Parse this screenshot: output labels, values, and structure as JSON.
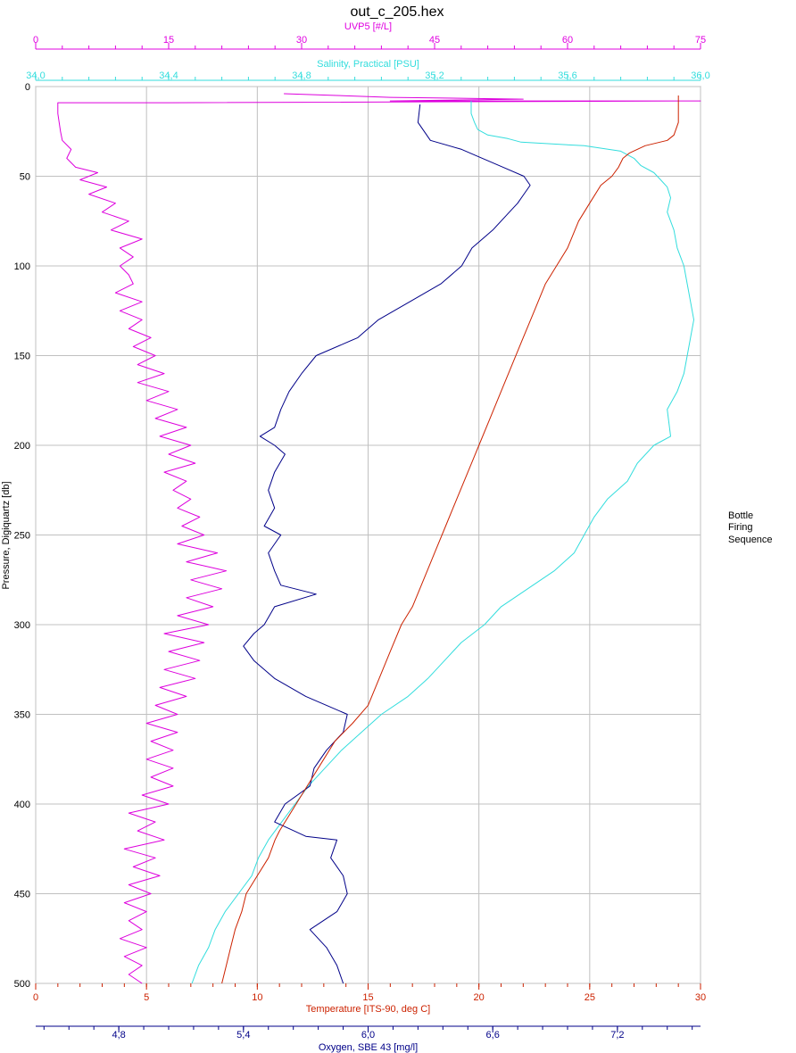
{
  "chart_data": {
    "type": "line",
    "title": "out_c_205.hex",
    "legend": {
      "lines": [
        "Bottle",
        "Firing",
        "Sequence"
      ],
      "placement": "right"
    },
    "grid": true,
    "y_axis": {
      "label": "Pressure, Digiquartz [db]",
      "range": [
        0,
        500
      ],
      "inverted": true,
      "ticks": [
        0,
        50,
        100,
        150,
        200,
        250,
        300,
        350,
        400,
        450,
        500
      ],
      "tick_labels": [
        "0",
        "50",
        "100",
        "150",
        "200",
        "250",
        "300",
        "350",
        "400",
        "450",
        "500"
      ],
      "color": "#000000"
    },
    "x_axes": [
      {
        "key": "uvp5",
        "label": "UVP5 [#/L]",
        "position": "top-outer",
        "range": [
          0,
          75
        ],
        "ticks": [
          0,
          15,
          30,
          45,
          60,
          75
        ],
        "tick_labels": [
          "0",
          "15",
          "30",
          "45",
          "60",
          "75"
        ],
        "color": "#e000e0"
      },
      {
        "key": "salinity",
        "label": "Salinity, Practical [PSU]",
        "position": "top-inner",
        "range": [
          34.0,
          36.0
        ],
        "ticks": [
          34.0,
          34.4,
          34.8,
          35.2,
          35.6,
          36.0
        ],
        "tick_labels": [
          "34,0",
          "34,4",
          "34,8",
          "35,2",
          "35,6",
          "36,0"
        ],
        "color": "#33dddd"
      },
      {
        "key": "temperature",
        "label": "Temperature [ITS-90, deg C]",
        "position": "bottom-inner",
        "range": [
          0,
          30
        ],
        "ticks": [
          0,
          5,
          10,
          15,
          20,
          25,
          30
        ],
        "tick_labels": [
          "0",
          "5",
          "10",
          "15",
          "20",
          "25",
          "30"
        ],
        "color": "#cc2200"
      },
      {
        "key": "oxygen",
        "label": "Oxygen, SBE 43 [mg/l]",
        "position": "bottom-outer",
        "range": [
          4.4,
          7.6
        ],
        "ticks": [
          4.8,
          5.4,
          6.0,
          6.6,
          7.2
        ],
        "tick_labels": [
          "4,8",
          "5,4",
          "6,0",
          "6,6",
          "7,2"
        ],
        "color": "#000088"
      }
    ],
    "series": [
      {
        "name": "UVP5 [#/L]",
        "axis": "uvp5",
        "color": "#dd00dd",
        "points": [
          [
            28,
            4
          ],
          [
            34,
            5
          ],
          [
            40,
            6
          ],
          [
            55,
            7
          ],
          [
            40,
            8
          ],
          [
            75,
            8
          ],
          [
            15,
            9
          ],
          [
            2.5,
            9
          ],
          [
            2.5,
            15
          ],
          [
            2.8,
            25
          ],
          [
            3,
            30
          ],
          [
            4,
            35
          ],
          [
            3.5,
            40
          ],
          [
            4.5,
            45
          ],
          [
            7,
            48
          ],
          [
            5,
            52
          ],
          [
            8,
            56
          ],
          [
            6,
            60
          ],
          [
            9,
            65
          ],
          [
            7.5,
            70
          ],
          [
            10.5,
            75
          ],
          [
            8.5,
            80
          ],
          [
            12,
            85
          ],
          [
            9.5,
            90
          ],
          [
            11,
            95
          ],
          [
            9.5,
            100
          ],
          [
            10.5,
            105
          ],
          [
            11,
            110
          ],
          [
            9,
            115
          ],
          [
            12,
            120
          ],
          [
            9.5,
            125
          ],
          [
            12,
            130
          ],
          [
            10.5,
            135
          ],
          [
            13,
            140
          ],
          [
            11,
            145
          ],
          [
            13.5,
            150
          ],
          [
            11.5,
            155
          ],
          [
            14.5,
            160
          ],
          [
            11.5,
            165
          ],
          [
            15,
            170
          ],
          [
            12.5,
            175
          ],
          [
            16,
            180
          ],
          [
            13.5,
            185
          ],
          [
            17,
            190
          ],
          [
            14,
            195
          ],
          [
            17.5,
            200
          ],
          [
            15,
            205
          ],
          [
            18,
            210
          ],
          [
            14.5,
            215
          ],
          [
            17,
            220
          ],
          [
            15.5,
            225
          ],
          [
            17.5,
            230
          ],
          [
            16,
            235
          ],
          [
            18.5,
            240
          ],
          [
            16.5,
            245
          ],
          [
            19,
            250
          ],
          [
            16,
            255
          ],
          [
            20.5,
            260
          ],
          [
            17,
            265
          ],
          [
            21.5,
            270
          ],
          [
            17.5,
            275
          ],
          [
            21,
            280
          ],
          [
            17,
            285
          ],
          [
            20,
            290
          ],
          [
            16,
            295
          ],
          [
            19.5,
            300
          ],
          [
            14.5,
            305
          ],
          [
            19,
            310
          ],
          [
            15,
            315
          ],
          [
            18.5,
            320
          ],
          [
            14.5,
            325
          ],
          [
            18,
            330
          ],
          [
            14,
            335
          ],
          [
            17,
            340
          ],
          [
            13.5,
            345
          ],
          [
            16,
            350
          ],
          [
            12.5,
            355
          ],
          [
            16,
            360
          ],
          [
            13,
            365
          ],
          [
            15.5,
            370
          ],
          [
            12.5,
            375
          ],
          [
            15.5,
            380
          ],
          [
            13,
            385
          ],
          [
            15.5,
            390
          ],
          [
            12,
            395
          ],
          [
            15,
            400
          ],
          [
            10.5,
            405
          ],
          [
            13.5,
            410
          ],
          [
            11.5,
            415
          ],
          [
            14.5,
            420
          ],
          [
            10,
            425
          ],
          [
            13.5,
            430
          ],
          [
            11,
            435
          ],
          [
            14,
            440
          ],
          [
            10.5,
            445
          ],
          [
            13,
            450
          ],
          [
            10,
            455
          ],
          [
            12.5,
            460
          ],
          [
            10.5,
            465
          ],
          [
            12,
            470
          ],
          [
            9.5,
            475
          ],
          [
            12.5,
            480
          ],
          [
            10,
            485
          ],
          [
            12,
            490
          ],
          [
            10.5,
            495
          ],
          [
            12,
            500
          ]
        ]
      },
      {
        "name": "Salinity, Practical [PSU]",
        "axis": "salinity",
        "color": "#33dddd",
        "points": [
          [
            35.31,
            8
          ],
          [
            35.31,
            15
          ],
          [
            35.32,
            20
          ],
          [
            35.33,
            24
          ],
          [
            35.36,
            27
          ],
          [
            35.42,
            29
          ],
          [
            35.46,
            31
          ],
          [
            35.65,
            33
          ],
          [
            35.76,
            36
          ],
          [
            35.8,
            40
          ],
          [
            35.82,
            44
          ],
          [
            35.86,
            48
          ],
          [
            35.88,
            52
          ],
          [
            35.9,
            56
          ],
          [
            35.91,
            62
          ],
          [
            35.9,
            70
          ],
          [
            35.92,
            80
          ],
          [
            35.93,
            90
          ],
          [
            35.95,
            100
          ],
          [
            35.96,
            110
          ],
          [
            35.97,
            120
          ],
          [
            35.98,
            130
          ],
          [
            35.97,
            140
          ],
          [
            35.96,
            150
          ],
          [
            35.95,
            160
          ],
          [
            35.93,
            170
          ],
          [
            35.9,
            180
          ],
          [
            35.91,
            195
          ],
          [
            35.86,
            200
          ],
          [
            35.81,
            210
          ],
          [
            35.78,
            220
          ],
          [
            35.72,
            230
          ],
          [
            35.68,
            240
          ],
          [
            35.65,
            250
          ],
          [
            35.62,
            260
          ],
          [
            35.56,
            270
          ],
          [
            35.48,
            280
          ],
          [
            35.4,
            290
          ],
          [
            35.35,
            300
          ],
          [
            35.28,
            310
          ],
          [
            35.23,
            320
          ],
          [
            35.18,
            330
          ],
          [
            35.12,
            340
          ],
          [
            35.04,
            350
          ],
          [
            34.98,
            360
          ],
          [
            34.92,
            370
          ],
          [
            34.87,
            380
          ],
          [
            34.82,
            390
          ],
          [
            34.78,
            400
          ],
          [
            34.74,
            410
          ],
          [
            34.7,
            420
          ],
          [
            34.67,
            430
          ],
          [
            34.65,
            440
          ],
          [
            34.61,
            450
          ],
          [
            34.57,
            460
          ],
          [
            34.54,
            470
          ],
          [
            34.52,
            480
          ],
          [
            34.49,
            490
          ],
          [
            34.47,
            500
          ]
        ]
      },
      {
        "name": "Oxygen, SBE 43 [mg/l]",
        "axis": "oxygen",
        "color": "#000088",
        "points": [
          [
            6.25,
            10
          ],
          [
            6.24,
            20
          ],
          [
            6.27,
            25
          ],
          [
            6.3,
            30
          ],
          [
            6.45,
            35
          ],
          [
            6.55,
            40
          ],
          [
            6.65,
            45
          ],
          [
            6.75,
            50
          ],
          [
            6.78,
            55
          ],
          [
            6.75,
            60
          ],
          [
            6.72,
            65
          ],
          [
            6.68,
            70
          ],
          [
            6.6,
            80
          ],
          [
            6.55,
            85
          ],
          [
            6.5,
            90
          ],
          [
            6.45,
            100
          ],
          [
            6.35,
            110
          ],
          [
            6.2,
            120
          ],
          [
            6.05,
            130
          ],
          [
            5.95,
            140
          ],
          [
            5.75,
            150
          ],
          [
            5.68,
            160
          ],
          [
            5.62,
            170
          ],
          [
            5.58,
            180
          ],
          [
            5.55,
            190
          ],
          [
            5.48,
            195
          ],
          [
            5.55,
            200
          ],
          [
            5.6,
            205
          ],
          [
            5.55,
            215
          ],
          [
            5.52,
            225
          ],
          [
            5.55,
            235
          ],
          [
            5.5,
            245
          ],
          [
            5.58,
            250
          ],
          [
            5.52,
            260
          ],
          [
            5.55,
            270
          ],
          [
            5.58,
            278
          ],
          [
            5.75,
            283
          ],
          [
            5.55,
            290
          ],
          [
            5.5,
            300
          ],
          [
            5.45,
            305
          ],
          [
            5.4,
            312
          ],
          [
            5.45,
            320
          ],
          [
            5.55,
            330
          ],
          [
            5.7,
            340
          ],
          [
            5.8,
            345
          ],
          [
            5.9,
            350
          ],
          [
            5.88,
            360
          ],
          [
            5.8,
            370
          ],
          [
            5.74,
            380
          ],
          [
            5.72,
            390
          ],
          [
            5.6,
            400
          ],
          [
            5.55,
            410
          ],
          [
            5.7,
            418
          ],
          [
            5.85,
            420
          ],
          [
            5.82,
            430
          ],
          [
            5.88,
            440
          ],
          [
            5.9,
            450
          ],
          [
            5.85,
            460
          ],
          [
            5.72,
            470
          ],
          [
            5.8,
            480
          ],
          [
            5.85,
            490
          ],
          [
            5.88,
            500
          ]
        ]
      },
      {
        "name": "Temperature [ITS-90, deg C]",
        "axis": "temperature",
        "color": "#cc2200",
        "points": [
          [
            29.0,
            5
          ],
          [
            29.0,
            10
          ],
          [
            29.0,
            20
          ],
          [
            28.8,
            27
          ],
          [
            28.5,
            30
          ],
          [
            27.5,
            33
          ],
          [
            26.8,
            37
          ],
          [
            26.5,
            40
          ],
          [
            26.3,
            45
          ],
          [
            26.0,
            50
          ],
          [
            25.5,
            55
          ],
          [
            25.0,
            65
          ],
          [
            24.5,
            75
          ],
          [
            24.0,
            90
          ],
          [
            23.5,
            100
          ],
          [
            23.0,
            110
          ],
          [
            22.5,
            125
          ],
          [
            22.0,
            140
          ],
          [
            21.5,
            155
          ],
          [
            21.0,
            170
          ],
          [
            20.5,
            185
          ],
          [
            20.0,
            200
          ],
          [
            19.5,
            215
          ],
          [
            19.0,
            230
          ],
          [
            18.5,
            245
          ],
          [
            18.0,
            260
          ],
          [
            17.5,
            275
          ],
          [
            17.0,
            290
          ],
          [
            16.5,
            300
          ],
          [
            16.0,
            315
          ],
          [
            15.5,
            330
          ],
          [
            15.0,
            345
          ],
          [
            14.3,
            355
          ],
          [
            13.5,
            365
          ],
          [
            13.0,
            375
          ],
          [
            12.5,
            385
          ],
          [
            12.0,
            395
          ],
          [
            11.5,
            405
          ],
          [
            11.0,
            415
          ],
          [
            10.8,
            420
          ],
          [
            10.5,
            430
          ],
          [
            10.0,
            440
          ],
          [
            9.5,
            450
          ],
          [
            9.3,
            460
          ],
          [
            9.0,
            470
          ],
          [
            8.8,
            480
          ],
          [
            8.6,
            490
          ],
          [
            8.4,
            500
          ]
        ]
      }
    ]
  }
}
